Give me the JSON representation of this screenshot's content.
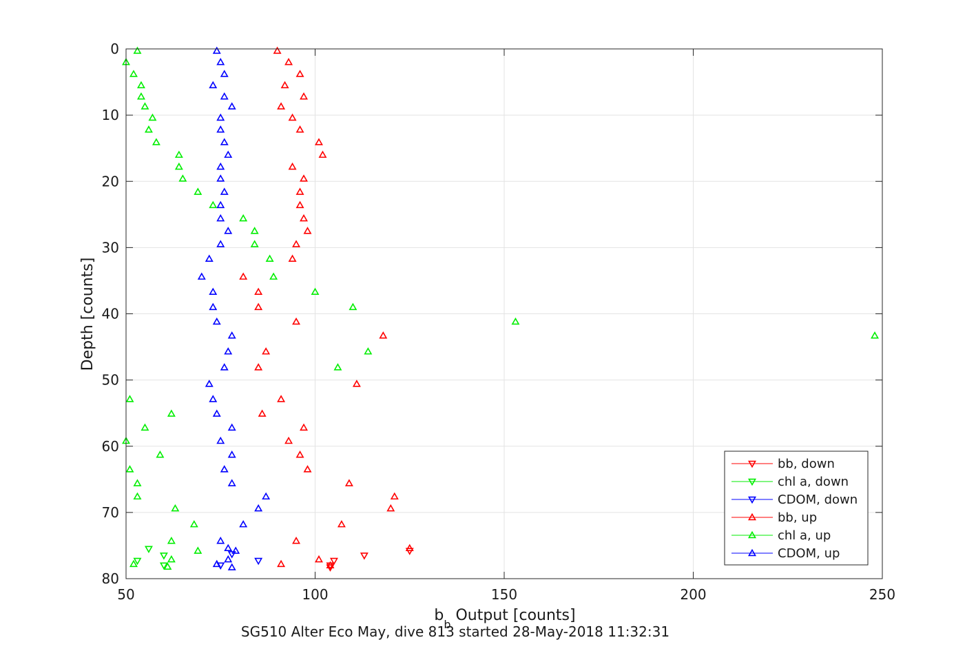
{
  "chart_data": {
    "type": "scatter",
    "title": "",
    "caption": "SG510 Alter Eco May, dive 813 started 28-May-2018 11:32:31",
    "xlabel": {
      "main": "b",
      "sub": "b",
      "rest": " Output [counts]"
    },
    "ylabel": "Depth [counts]",
    "xlim": [
      50,
      250
    ],
    "ylim": [
      0,
      80
    ],
    "y_reversed": true,
    "x_ticks": [
      50,
      100,
      150,
      200,
      250
    ],
    "y_ticks": [
      0,
      10,
      20,
      30,
      40,
      50,
      60,
      70,
      80
    ],
    "grid": true,
    "legend_position": "bottom-right",
    "series": [
      {
        "name": "bb, down",
        "color": "#ff0000",
        "marker": "triangle-down",
        "points": [
          [
            113,
            76.5
          ],
          [
            125,
            75.8
          ],
          [
            105,
            77.3
          ],
          [
            104,
            78.0
          ],
          [
            104,
            78.3
          ]
        ]
      },
      {
        "name": "chl a, down",
        "color": "#00ee00",
        "marker": "triangle-down",
        "points": [
          [
            56,
            75.5
          ],
          [
            60,
            76.5
          ],
          [
            53,
            77.3
          ],
          [
            60,
            78.0
          ]
        ]
      },
      {
        "name": "CDOM, down",
        "color": "#0000ff",
        "marker": "triangle-down",
        "points": [
          [
            85,
            77.3
          ],
          [
            78,
            76.3
          ],
          [
            75,
            78.0
          ]
        ]
      },
      {
        "name": "bb, up",
        "color": "#ff0000",
        "marker": "triangle-up",
        "points": [
          [
            90,
            0.3
          ],
          [
            93,
            2.0
          ],
          [
            96,
            3.8
          ],
          [
            92,
            5.5
          ],
          [
            97,
            7.2
          ],
          [
            91,
            8.7
          ],
          [
            94,
            10.4
          ],
          [
            96,
            12.2
          ],
          [
            101,
            14.1
          ],
          [
            102,
            16.0
          ],
          [
            94,
            17.8
          ],
          [
            97,
            19.6
          ],
          [
            96,
            21.6
          ],
          [
            96,
            23.6
          ],
          [
            97,
            25.6
          ],
          [
            98,
            27.5
          ],
          [
            95,
            29.5
          ],
          [
            94,
            31.7
          ],
          [
            81,
            34.4
          ],
          [
            85,
            36.7
          ],
          [
            85,
            39.0
          ],
          [
            95,
            41.2
          ],
          [
            118,
            43.3
          ],
          [
            87,
            45.7
          ],
          [
            85,
            48.1
          ],
          [
            111,
            50.6
          ],
          [
            91,
            52.9
          ],
          [
            86,
            55.1
          ],
          [
            97,
            57.2
          ],
          [
            93,
            59.2
          ],
          [
            96,
            61.3
          ],
          [
            98,
            63.5
          ],
          [
            109,
            65.6
          ],
          [
            121,
            67.6
          ],
          [
            120,
            69.4
          ],
          [
            107,
            71.8
          ],
          [
            95,
            74.3
          ],
          [
            125,
            75.4
          ],
          [
            101,
            77.1
          ],
          [
            91,
            77.8
          ],
          [
            104,
            78.0
          ]
        ]
      },
      {
        "name": "chl a, up",
        "color": "#00ee00",
        "marker": "triangle-up",
        "points": [
          [
            53,
            0.3
          ],
          [
            50,
            2.0
          ],
          [
            52,
            3.8
          ],
          [
            54,
            5.5
          ],
          [
            54,
            7.2
          ],
          [
            55,
            8.7
          ],
          [
            57,
            10.4
          ],
          [
            56,
            12.2
          ],
          [
            58,
            14.1
          ],
          [
            64,
            16.0
          ],
          [
            64,
            17.8
          ],
          [
            65,
            19.6
          ],
          [
            69,
            21.6
          ],
          [
            73,
            23.6
          ],
          [
            81,
            25.6
          ],
          [
            84,
            27.5
          ],
          [
            84,
            29.5
          ],
          [
            88,
            31.7
          ],
          [
            89,
            34.4
          ],
          [
            100,
            36.7
          ],
          [
            110,
            39.0
          ],
          [
            153,
            41.2
          ],
          [
            248,
            43.3
          ],
          [
            114,
            45.7
          ],
          [
            106,
            48.1
          ],
          [
            51,
            52.9
          ],
          [
            62,
            55.1
          ],
          [
            55,
            57.2
          ],
          [
            50,
            59.2
          ],
          [
            59,
            61.3
          ],
          [
            51,
            63.5
          ],
          [
            53,
            65.6
          ],
          [
            53,
            67.6
          ],
          [
            63,
            69.4
          ],
          [
            68,
            71.8
          ],
          [
            62,
            74.3
          ],
          [
            69,
            75.8
          ],
          [
            62,
            77.1
          ],
          [
            52,
            77.8
          ],
          [
            61,
            78.2
          ]
        ]
      },
      {
        "name": "CDOM, up",
        "color": "#0000ff",
        "marker": "triangle-up",
        "points": [
          [
            74,
            0.3
          ],
          [
            75,
            2.0
          ],
          [
            76,
            3.8
          ],
          [
            73,
            5.5
          ],
          [
            76,
            7.2
          ],
          [
            78,
            8.7
          ],
          [
            75,
            10.4
          ],
          [
            75,
            12.2
          ],
          [
            76,
            14.1
          ],
          [
            77,
            16.0
          ],
          [
            75,
            17.8
          ],
          [
            75,
            19.6
          ],
          [
            76,
            21.6
          ],
          [
            75,
            23.6
          ],
          [
            75,
            25.6
          ],
          [
            77,
            27.5
          ],
          [
            75,
            29.5
          ],
          [
            72,
            31.7
          ],
          [
            70,
            34.4
          ],
          [
            73,
            36.7
          ],
          [
            73,
            39.0
          ],
          [
            74,
            41.2
          ],
          [
            78,
            43.3
          ],
          [
            77,
            45.7
          ],
          [
            76,
            48.1
          ],
          [
            72,
            50.6
          ],
          [
            73,
            52.9
          ],
          [
            74,
            55.1
          ],
          [
            78,
            57.2
          ],
          [
            75,
            59.2
          ],
          [
            78,
            61.3
          ],
          [
            76,
            63.5
          ],
          [
            78,
            65.6
          ],
          [
            87,
            67.6
          ],
          [
            85,
            69.4
          ],
          [
            81,
            71.8
          ],
          [
            75,
            74.3
          ],
          [
            77,
            75.4
          ],
          [
            79,
            75.8
          ],
          [
            77,
            77.1
          ],
          [
            74,
            77.8
          ],
          [
            78,
            78.3
          ]
        ]
      }
    ]
  }
}
